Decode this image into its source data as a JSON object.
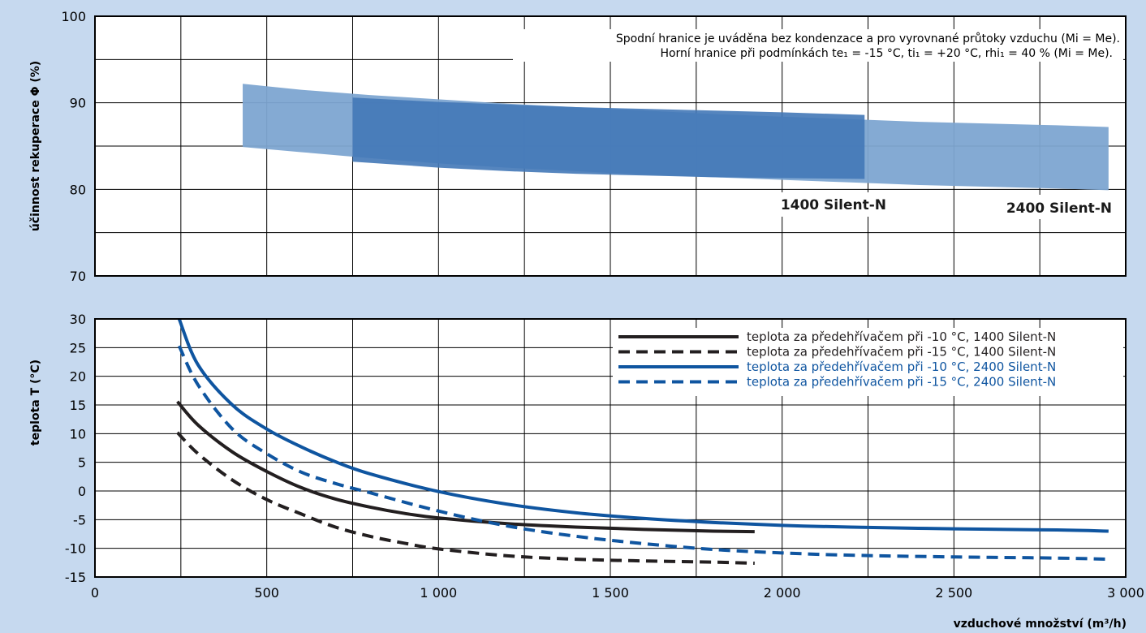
{
  "chart_data": [
    {
      "type": "area",
      "ylabel": "účinnost rekuperace Φ (%)",
      "ylim": [
        70,
        100
      ],
      "y_ticks": [
        "100",
        "90",
        "80",
        "70"
      ],
      "xlim": [
        0,
        3000
      ],
      "grid": true,
      "notes": [
        "Spodní hranice je uváděna bez kondenzace a pro vyrovnané průtoky vzduchu (Mi = Me).",
        "Horní hranice při podmínkách te₁ = -15 °C, ti₁ = +20 °C, rhi₁ = 40 % (Mi = Me)."
      ],
      "series": [
        {
          "name": "2400 Silent-N",
          "color": "#7da5d1",
          "x": [
            430,
            600,
            800,
            1000,
            1200,
            1400,
            1600,
            1800,
            2000,
            2200,
            2400,
            2600,
            2800,
            2950
          ],
          "upper": [
            92.2,
            91.5,
            90.9,
            90.4,
            89.9,
            89.5,
            89.1,
            88.7,
            88.4,
            88.1,
            87.8,
            87.6,
            87.4,
            87.2
          ],
          "lower": [
            84.9,
            84.3,
            83.6,
            83.0,
            82.5,
            82.1,
            81.7,
            81.4,
            81.1,
            80.8,
            80.5,
            80.3,
            80.1,
            79.9
          ]
        },
        {
          "name": "1400 Silent-N",
          "color": "#4378b7",
          "x": [
            750,
            900,
            1000,
            1200,
            1400,
            1600,
            1800,
            2000,
            2240
          ],
          "upper": [
            90.6,
            90.3,
            90.1,
            89.8,
            89.5,
            89.3,
            89.1,
            88.9,
            88.6
          ],
          "lower": [
            83.2,
            82.8,
            82.5,
            82.1,
            81.8,
            81.6,
            81.4,
            81.3,
            81.2
          ]
        }
      ]
    },
    {
      "type": "line",
      "xlabel": "vzduchové množství (m³/h)",
      "ylabel": "teplota T (°C)",
      "xlim": [
        0,
        3000
      ],
      "ylim": [
        -15,
        30
      ],
      "x_ticks": [
        "0",
        "500",
        "1 000",
        "1 500",
        "2 000",
        "2 500",
        "3 000"
      ],
      "y_ticks": [
        "30",
        "25",
        "20",
        "15",
        "10",
        "5",
        "0",
        "-5",
        "-10",
        "-15"
      ],
      "grid": true,
      "legend_position": "top-right",
      "series": [
        {
          "name": "teplota za předehřívačem při -10 °C, 1400 Silent-N",
          "color": "#231f20",
          "dashed": false,
          "x": [
            240,
            300,
            400,
            500,
            600,
            700,
            800,
            900,
            1000,
            1200,
            1400,
            1600,
            1800,
            1920
          ],
          "y": [
            15.6,
            11.5,
            6.8,
            3.4,
            0.6,
            -1.4,
            -2.8,
            -3.9,
            -4.7,
            -5.7,
            -6.3,
            -6.7,
            -7.0,
            -7.1
          ]
        },
        {
          "name": "teplota za předehřívačem při -15 °C, 1400 Silent-N",
          "color": "#231f20",
          "dashed": true,
          "x": [
            240,
            300,
            400,
            500,
            600,
            700,
            800,
            900,
            1000,
            1200,
            1400,
            1600,
            1800,
            1920
          ],
          "y": [
            10.2,
            6.5,
            1.9,
            -1.5,
            -4.0,
            -6.3,
            -7.9,
            -9.1,
            -10.1,
            -11.3,
            -11.9,
            -12.2,
            -12.4,
            -12.6
          ]
        },
        {
          "name": "teplota za předehřívačem při -10 °C, 2400 Silent-N",
          "color": "#0f55a0",
          "dashed": false,
          "x": [
            245,
            300,
            400,
            500,
            600,
            700,
            800,
            1000,
            1200,
            1400,
            1600,
            1800,
            2000,
            2200,
            2500,
            2800,
            2950
          ],
          "y": [
            30.0,
            22.0,
            15.0,
            10.8,
            7.7,
            5.1,
            3.0,
            -0.1,
            -2.3,
            -3.8,
            -4.8,
            -5.5,
            -6.0,
            -6.3,
            -6.6,
            -6.8,
            -7.0
          ]
        },
        {
          "name": "teplota za předehřívačem při -15 °C, 2400 Silent-N",
          "color": "#0f55a0",
          "dashed": true,
          "x": [
            245,
            300,
            400,
            500,
            600,
            700,
            800,
            1000,
            1200,
            1400,
            1600,
            1800,
            2000,
            2200,
            2500,
            2800,
            2950
          ],
          "y": [
            25.3,
            18.5,
            10.8,
            6.5,
            3.3,
            1.3,
            -0.3,
            -3.5,
            -6.1,
            -7.9,
            -9.2,
            -10.2,
            -10.8,
            -11.2,
            -11.5,
            -11.7,
            -11.9
          ]
        }
      ]
    }
  ]
}
